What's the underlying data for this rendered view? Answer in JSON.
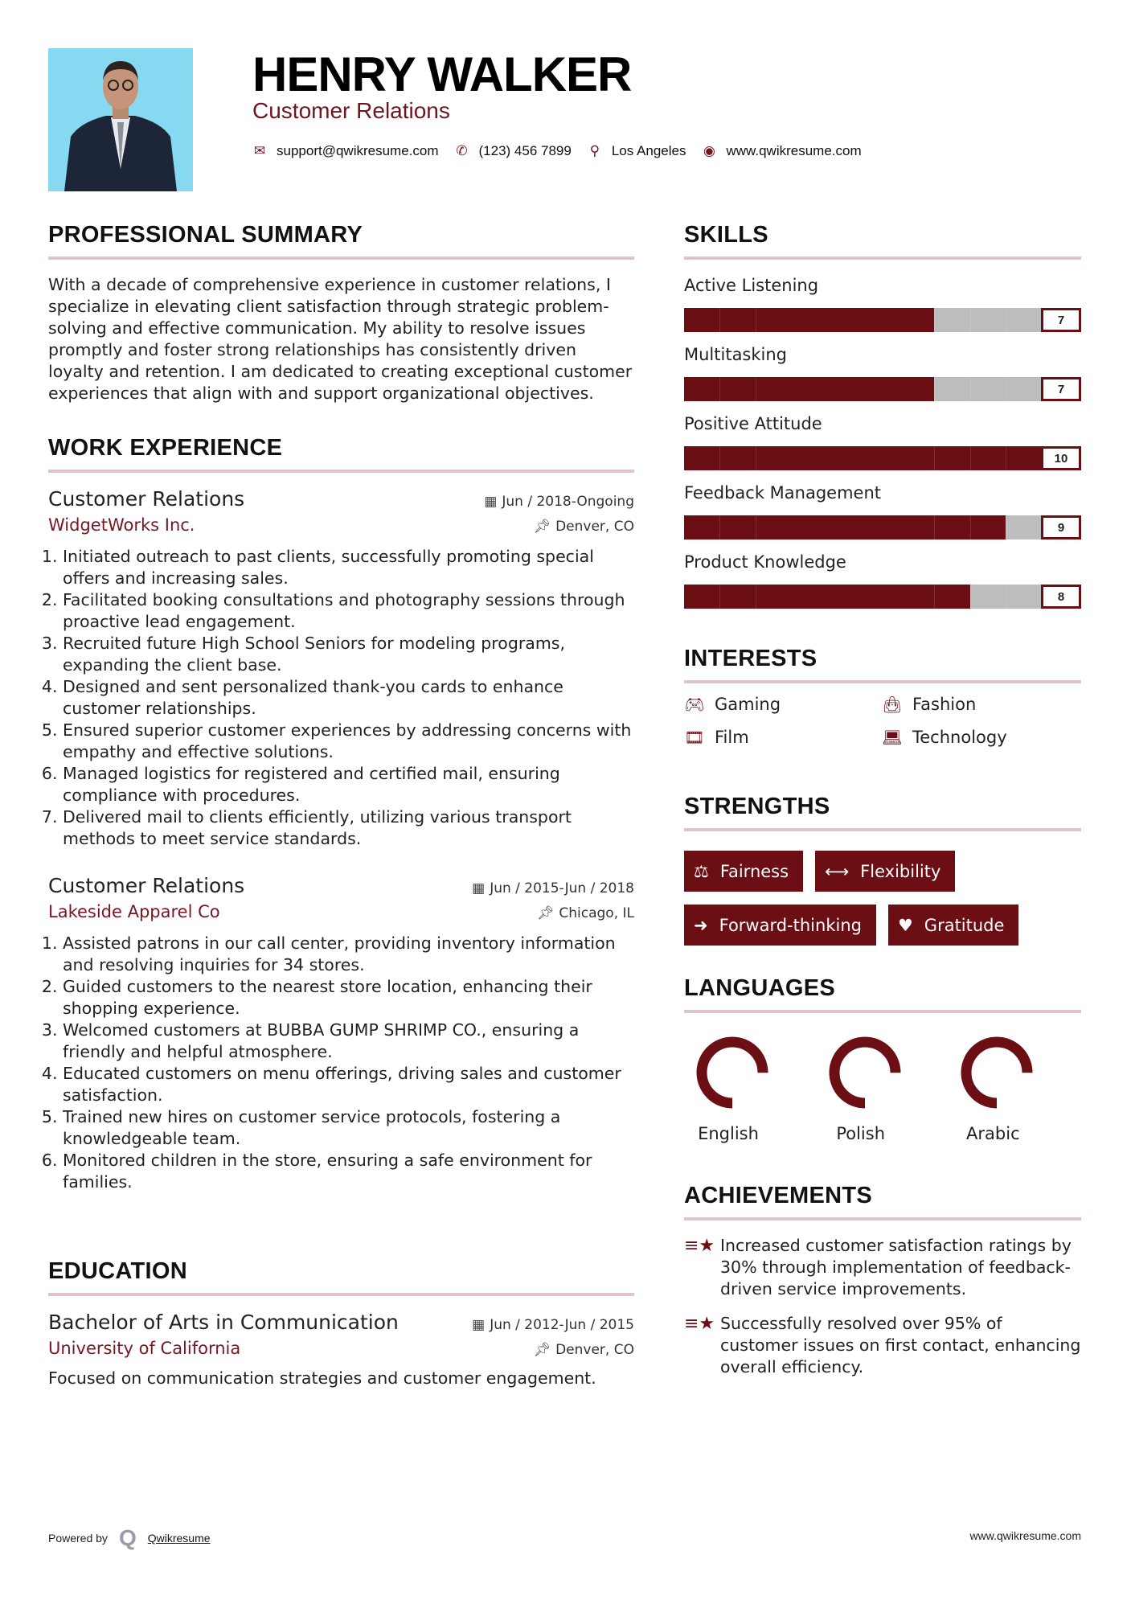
{
  "header": {
    "name": "HENRY WALKER",
    "role": "Customer Relations",
    "contacts": [
      {
        "icon": "envelope-icon",
        "text": "support@qwikresume.com"
      },
      {
        "icon": "phone-icon",
        "text": "(123) 456 7899"
      },
      {
        "icon": "map-marker-icon",
        "text": "Los Angeles"
      },
      {
        "icon": "globe-icon",
        "text": "www.qwikresume.com"
      }
    ]
  },
  "summary": {
    "title": "PROFESSIONAL SUMMARY",
    "text": "With a decade of comprehensive experience in customer relations, I specialize in elevating client satisfaction through strategic problem-solving and effective communication. My ability to resolve issues promptly and foster strong relationships has consistently driven loyalty and retention. I am dedicated to creating exceptional customer experiences that align with and support organizational objectives."
  },
  "experience": {
    "title": "WORK EXPERIENCE",
    "jobs": [
      {
        "title": "Customer Relations",
        "company": "WidgetWorks Inc.",
        "dates": "Jun / 2018-Ongoing",
        "location": "Denver, CO",
        "bullets": [
          "Initiated outreach to past clients, successfully promoting special offers and increasing sales.",
          "Facilitated booking consultations and photography sessions through proactive lead engagement.",
          "Recruited future High School Seniors for modeling programs, expanding the client base.",
          "Designed and sent personalized thank-you cards to enhance customer relationships.",
          "Ensured superior customer experiences by addressing concerns with empathy and effective solutions.",
          "Managed logistics for registered and certified mail, ensuring compliance with procedures.",
          "Delivered mail to clients efficiently, utilizing various transport methods to meet service standards."
        ]
      },
      {
        "title": "Customer Relations",
        "company": "Lakeside Apparel Co",
        "dates": "Jun / 2015-Jun / 2018",
        "location": "Chicago, IL",
        "bullets": [
          "Assisted patrons in our call center, providing inventory information and resolving inquiries for 34 stores.",
          "Guided customers to the nearest store location, enhancing their shopping experience.",
          "Welcomed customers at BUBBA GUMP SHRIMP CO., ensuring a friendly and helpful atmosphere.",
          "Educated customers on menu offerings, driving sales and customer satisfaction.",
          "Trained new hires on customer service protocols, fostering a knowledgeable team.",
          "Monitored children in the store, ensuring a safe environment for families."
        ]
      }
    ]
  },
  "education": {
    "title": "EDUCATION",
    "degree": "Bachelor of Arts in Communication",
    "school": "University of California",
    "dates": "Jun / 2012-Jun / 2015",
    "location": "Denver, CO",
    "description": "Focused on communication strategies and customer engagement."
  },
  "skills": {
    "title": "SKILLS",
    "max": 10,
    "items": [
      {
        "name": "Active Listening",
        "level": 7
      },
      {
        "name": "Multitasking",
        "level": 7
      },
      {
        "name": "Positive Attitude",
        "level": 10
      },
      {
        "name": "Feedback Management",
        "level": 9
      },
      {
        "name": "Product Knowledge",
        "level": 8
      }
    ]
  },
  "interests": {
    "title": "INTERESTS",
    "items": [
      {
        "icon": "gamepad-icon",
        "label": "Gaming"
      },
      {
        "icon": "shopping-bag-icon",
        "label": "Fashion"
      },
      {
        "icon": "film-icon",
        "label": "Film"
      },
      {
        "icon": "laptop-icon",
        "label": "Technology"
      }
    ]
  },
  "strengths": {
    "title": "STRENGTHS",
    "items": [
      {
        "icon": "balance-scale-icon",
        "label": "Fairness"
      },
      {
        "icon": "arrows-h-icon",
        "label": "Flexibility"
      },
      {
        "icon": "arrow-right-icon",
        "label": "Forward-thinking"
      },
      {
        "icon": "heart-icon",
        "label": "Gratitude"
      }
    ]
  },
  "languages": {
    "title": "LANGUAGES",
    "items": [
      {
        "name": "English",
        "level": 0.75
      },
      {
        "name": "Polish",
        "level": 0.75
      },
      {
        "name": "Arabic",
        "level": 0.75
      }
    ]
  },
  "achievements": {
    "title": "ACHIEVEMENTS",
    "items": [
      "Increased customer satisfaction ratings by 30% through implementation of feedback-driven service improvements.",
      "Successfully resolved over 95% of customer issues on first contact, enhancing overall efficiency."
    ]
  },
  "footer": {
    "powered_by": "Powered by",
    "brand": "Qwikresume",
    "url": "www.qwikresume.com"
  },
  "colors": {
    "accent": "#6b0f14",
    "subtitle": "#7a1624",
    "rule": "#dcc6cb",
    "bar_empty": "#bdbdbd",
    "photo_bg": "#86d9f0"
  }
}
